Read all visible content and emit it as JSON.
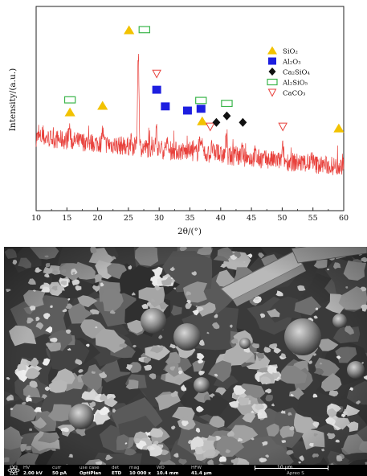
{
  "chart_data": {
    "type": "line",
    "xlabel": "2θ/(°)",
    "ylabel": "Intensity/(a.u.)",
    "xlim": [
      10,
      60
    ],
    "xticks": [
      10,
      15,
      20,
      25,
      30,
      35,
      40,
      45,
      50,
      55,
      60
    ],
    "grid": false,
    "legend_position": "top-right",
    "series": [
      {
        "name": "",
        "color": "#e8413c",
        "baseline": 0.8,
        "end_level": 0.3,
        "peaks": [
          {
            "x": 15.4,
            "height": 0.22
          },
          {
            "x": 20.8,
            "height": 0.22
          },
          {
            "x": 25.4,
            "height": 0.08
          },
          {
            "x": 26.6,
            "height": 1.6
          },
          {
            "x": 29.5,
            "height": 0.32
          },
          {
            "x": 31.2,
            "height": 0.15
          },
          {
            "x": 34.8,
            "height": 0.12
          },
          {
            "x": 36.5,
            "height": 0.18
          },
          {
            "x": 37.0,
            "height": 0.14
          },
          {
            "x": 38.6,
            "height": 0.12
          },
          {
            "x": 39.4,
            "height": 0.1
          },
          {
            "x": 40.9,
            "height": 0.26
          },
          {
            "x": 42.4,
            "height": 0.12
          },
          {
            "x": 43.5,
            "height": 0.12
          },
          {
            "x": 45.6,
            "height": 0.08
          },
          {
            "x": 50.1,
            "height": 0.22
          },
          {
            "x": 54.9,
            "height": 0.08
          },
          {
            "x": 59.9,
            "height": 0.1
          }
        ]
      }
    ],
    "legend": [
      {
        "label": "SiO₂",
        "marker": "triangle-up",
        "color": "#f2c200"
      },
      {
        "label": "Al₂O₃",
        "marker": "square",
        "color": "#1d1ee0"
      },
      {
        "label": "Ca₂SiO₄",
        "marker": "diamond",
        "color": "#111111"
      },
      {
        "label": "Al₂SiO₅",
        "marker": "open-square",
        "color": "#3ab54a"
      },
      {
        "label": "CaCO₃",
        "marker": "open-triangle-down",
        "color": "#e8413c"
      }
    ],
    "phase_markers": [
      {
        "phase": "SiO₂",
        "marker": "triangle-up",
        "color": "#f2c200",
        "x": 15.5,
        "level": 1.22
      },
      {
        "phase": "SiO₂",
        "marker": "triangle-up",
        "color": "#f2c200",
        "x": 20.8,
        "level": 1.33
      },
      {
        "phase": "SiO₂",
        "marker": "triangle-up",
        "color": "#f2c200",
        "x": 25.1,
        "level": 2.6
      },
      {
        "phase": "SiO₂",
        "marker": "triangle-up",
        "color": "#f2c200",
        "x": 37.0,
        "level": 1.07
      },
      {
        "phase": "SiO₂",
        "marker": "triangle-up",
        "color": "#f2c200",
        "x": 59.2,
        "level": 0.95
      },
      {
        "phase": "Al₂SiO₅",
        "marker": "open-square",
        "color": "#3ab54a",
        "x": 15.5,
        "level": 1.43
      },
      {
        "phase": "Al₂SiO₅",
        "marker": "open-square",
        "color": "#3ab54a",
        "x": 27.6,
        "level": 2.61
      },
      {
        "phase": "Al₂SiO₅",
        "marker": "open-square",
        "color": "#3ab54a",
        "x": 36.8,
        "level": 1.42
      },
      {
        "phase": "Al₂SiO₅",
        "marker": "open-square",
        "color": "#3ab54a",
        "x": 41.0,
        "level": 1.37
      },
      {
        "phase": "Al₂O₃",
        "marker": "square",
        "color": "#1d1ee0",
        "x": 29.6,
        "level": 1.6
      },
      {
        "phase": "Al₂O₃",
        "marker": "square",
        "color": "#1d1ee0",
        "x": 31.0,
        "level": 1.32
      },
      {
        "phase": "Al₂O₃",
        "marker": "square",
        "color": "#1d1ee0",
        "x": 34.6,
        "level": 1.25
      },
      {
        "phase": "Al₂O₃",
        "marker": "square",
        "color": "#1d1ee0",
        "x": 36.8,
        "level": 1.28
      },
      {
        "phase": "CaCO₃",
        "marker": "open-triangle-down",
        "color": "#e8413c",
        "x": 29.6,
        "level": 1.87
      },
      {
        "phase": "CaCO₃",
        "marker": "open-triangle-down",
        "color": "#e8413c",
        "x": 38.3,
        "level": 0.98
      },
      {
        "phase": "CaCO₃",
        "marker": "open-triangle-down",
        "color": "#e8413c",
        "x": 50.1,
        "level": 0.98
      },
      {
        "phase": "Ca₂SiO₄",
        "marker": "diamond",
        "color": "#111111",
        "x": 39.3,
        "level": 1.05
      },
      {
        "phase": "Ca₂SiO₄",
        "marker": "diamond",
        "color": "#111111",
        "x": 41.0,
        "level": 1.16
      },
      {
        "phase": "Ca₂SiO₄",
        "marker": "diamond",
        "color": "#111111",
        "x": 43.6,
        "level": 1.05
      }
    ]
  },
  "sem": {
    "logo_icon": "fei-atom-logo-icon",
    "info_bar": [
      {
        "header": "HV",
        "value": "2.00 kV"
      },
      {
        "header": "curr",
        "value": "50 pA"
      },
      {
        "header": "use case",
        "value": "OptiPlan"
      },
      {
        "header": "det",
        "value": "ETD"
      },
      {
        "header": "mag",
        "value": "10 000 x"
      },
      {
        "header": "WD",
        "value": "10.4 mm"
      },
      {
        "header": "HFW",
        "value": "41.4 µm"
      }
    ],
    "scale_label": "10 µm",
    "brand": "Apreo S",
    "colors": {
      "background": "#2b2b2b",
      "particle": "#bdbdbd",
      "bar": "#000000"
    }
  }
}
